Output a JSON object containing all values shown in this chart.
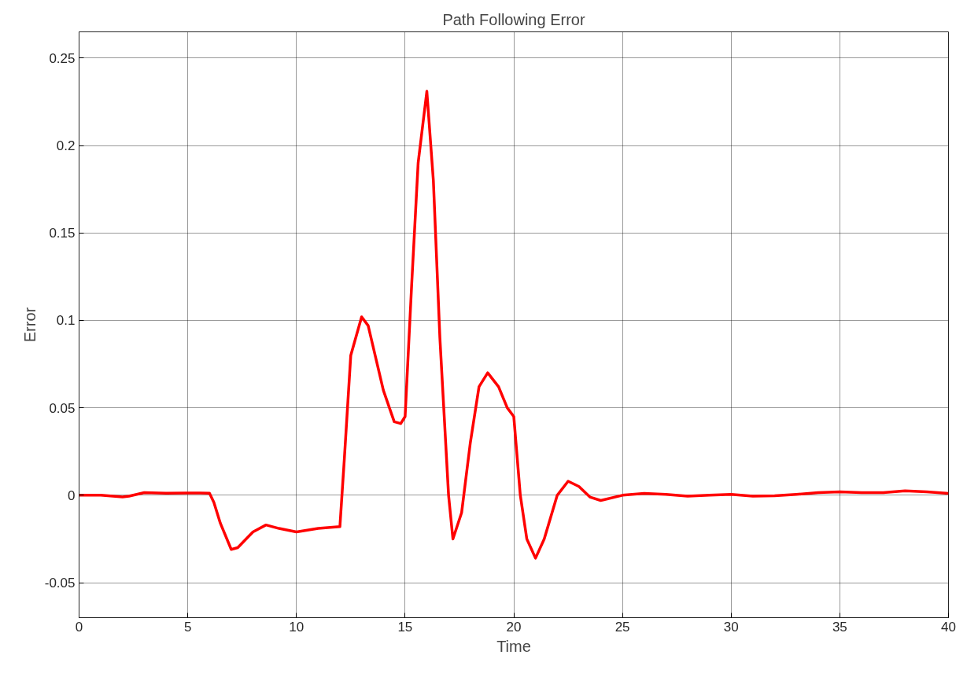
{
  "chart_data": {
    "type": "line",
    "title": "Path Following Error",
    "xlabel": "Time",
    "ylabel": "Error",
    "x": [
      0,
      1,
      2,
      2.3,
      3,
      4,
      5,
      6,
      6.2,
      6.5,
      7,
      7.3,
      8,
      8.6,
      9.2,
      10,
      11,
      12,
      12.2,
      12.5,
      13,
      13.3,
      14,
      14.5,
      14.8,
      15,
      15.3,
      15.6,
      16,
      16.3,
      16.6,
      17,
      17.2,
      17.6,
      18,
      18.4,
      18.8,
      19.3,
      19.7,
      20,
      20.3,
      20.6,
      21,
      21.4,
      22,
      22.5,
      23,
      23.5,
      24,
      25,
      26,
      27,
      28,
      29,
      30,
      31,
      32,
      33,
      34,
      35,
      36,
      37,
      38,
      39,
      40
    ],
    "series": [
      {
        "color": "#ff0000",
        "values": [
          0,
          0,
          -0.001,
          -0.0005,
          0.0015,
          0.0012,
          0.0013,
          0.0012,
          -0.004,
          -0.016,
          -0.031,
          -0.03,
          -0.021,
          -0.017,
          -0.019,
          -0.021,
          -0.019,
          -0.018,
          0.02,
          0.08,
          0.102,
          0.097,
          0.06,
          0.042,
          0.041,
          0.045,
          0.12,
          0.19,
          0.231,
          0.18,
          0.09,
          0.0,
          -0.025,
          -0.01,
          0.03,
          0.062,
          0.07,
          0.062,
          0.05,
          0.045,
          0.0,
          -0.025,
          -0.036,
          -0.025,
          0.0,
          0.008,
          0.005,
          -0.001,
          -0.003,
          0,
          0.001,
          0.0005,
          -0.0005,
          0,
          0.0005,
          -0.0005,
          -0.0003,
          0.0005,
          0.0015,
          0.002,
          0.0015,
          0.0015,
          0.0025,
          0.002,
          0.001
        ]
      }
    ],
    "xlim": [
      0,
      40
    ],
    "ylim": [
      -0.07,
      0.265
    ],
    "xticks": [
      0,
      5,
      10,
      15,
      20,
      25,
      30,
      35,
      40
    ],
    "yticks": [
      -0.05,
      0,
      0.05,
      0.1,
      0.15,
      0.2,
      0.25
    ],
    "grid": true,
    "marker": "none",
    "line_style": "solid"
  }
}
